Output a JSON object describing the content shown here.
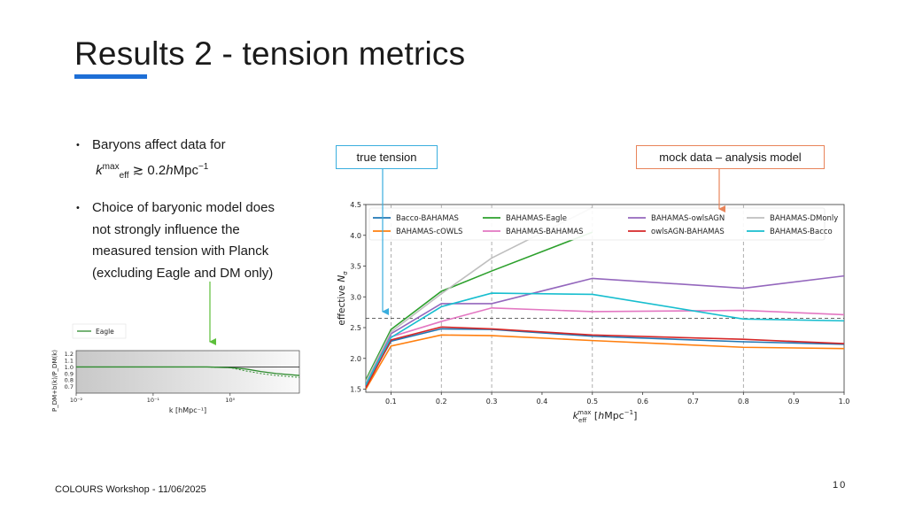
{
  "slide": {
    "title": "Results 2 - tension metrics",
    "footer": "COLOURS Workshop - 11/06/2025",
    "page_number": "10",
    "accent_color": "#1e6fd6"
  },
  "bullets": [
    {
      "text": "Baryons affect data for",
      "kline_k": "k",
      "kline_sup": "max",
      "kline_sub": "eff",
      "kline_rest": " ≳ 0.2",
      "kline_h": "h",
      "kline_unit": "Mpc",
      "kline_unit_sup": "−1"
    },
    {
      "text": "Choice of baryonic model does not strongly influence the measured tension with Planck (excluding Eagle and DM only)"
    }
  ],
  "callouts": {
    "true_tension": "true tension",
    "mock_data": "mock data – analysis model",
    "true_color": "#3aaede",
    "mock_color": "#e8845a",
    "arrow_green": "#5cbf3a"
  },
  "chart_data": [
    {
      "type": "line",
      "xlabel": "k_eff^max [hMpc^-1]",
      "ylabel": "effective N_σ",
      "xlim": [
        0.05,
        1.0
      ],
      "ylim": [
        1.45,
        4.5
      ],
      "x_ticks": [
        "0.1",
        "0.2",
        "0.3",
        "0.4",
        "0.5",
        "0.6",
        "0.7",
        "0.8",
        "0.9",
        "1.0"
      ],
      "y_ticks": [
        "1.5",
        "2.0",
        "2.5",
        "3.0",
        "3.5",
        "4.0",
        "4.5"
      ],
      "x_tick_values": [
        0.1,
        0.2,
        0.3,
        0.4,
        0.5,
        0.6,
        0.7,
        0.8,
        0.9,
        1.0
      ],
      "y_tick_values": [
        1.5,
        2.0,
        2.5,
        3.0,
        3.5,
        4.0,
        4.5
      ],
      "vlines": [
        0.1,
        0.2,
        0.3,
        0.5,
        0.8
      ],
      "hline": 2.65,
      "legend_position": "top",
      "series": [
        {
          "name": "Bacco-BAHAMAS",
          "color": "#1f77b4",
          "x": [
            0.05,
            0.1,
            0.2,
            0.3,
            0.5,
            0.8,
            1.0
          ],
          "y": [
            1.55,
            2.28,
            2.48,
            2.47,
            2.36,
            2.27,
            2.23
          ]
        },
        {
          "name": "BAHAMAS-cOWLS",
          "color": "#ff7f0e",
          "x": [
            0.05,
            0.1,
            0.2,
            0.3,
            0.5,
            0.8,
            1.0
          ],
          "y": [
            1.5,
            2.2,
            2.38,
            2.37,
            2.29,
            2.18,
            2.16
          ]
        },
        {
          "name": "BAHAMAS-Eagle",
          "color": "#2ca02c",
          "x": [
            0.05,
            0.1,
            0.2,
            0.3,
            0.5
          ],
          "y": [
            1.65,
            2.47,
            3.09,
            3.42,
            4.05
          ]
        },
        {
          "name": "BAHAMAS-BAHAMAS",
          "color": "#e377c2",
          "x": [
            0.05,
            0.1,
            0.2,
            0.3,
            0.5,
            0.8,
            1.0
          ],
          "y": [
            1.58,
            2.35,
            2.6,
            2.82,
            2.76,
            2.78,
            2.71
          ]
        },
        {
          "name": "BAHAMAS-owlsAGN",
          "color": "#9467bd",
          "x": [
            0.05,
            0.1,
            0.2,
            0.3,
            0.5,
            0.8,
            1.0
          ],
          "y": [
            1.6,
            2.4,
            2.89,
            2.89,
            3.3,
            3.14,
            3.34
          ]
        },
        {
          "name": "owlsAGN-BAHAMAS",
          "color": "#d62728",
          "x": [
            0.05,
            0.1,
            0.2,
            0.3,
            0.5,
            0.8,
            1.0
          ],
          "y": [
            1.52,
            2.3,
            2.51,
            2.48,
            2.38,
            2.31,
            2.24
          ]
        },
        {
          "name": "BAHAMAS-DMonly",
          "color": "#bfbfbf",
          "x": [
            0.05,
            0.1,
            0.2,
            0.3,
            0.5
          ],
          "y": [
            1.62,
            2.43,
            3.05,
            3.63,
            4.45
          ]
        },
        {
          "name": "BAHAMAS-Bacco",
          "color": "#17becf",
          "x": [
            0.05,
            0.1,
            0.2,
            0.3,
            0.5,
            0.8,
            1.0
          ],
          "y": [
            1.57,
            2.34,
            2.84,
            3.06,
            3.04,
            2.64,
            2.61
          ]
        }
      ]
    },
    {
      "type": "line",
      "xlabel": "k [hMpc^-1]",
      "ylabel": "P_DM+b(k)/P_DM(k)",
      "xscale": "log",
      "xlim_exp": [
        -2,
        0.9
      ],
      "ylim": [
        0.6,
        1.25
      ],
      "x_ticks": [
        "10⁻²",
        "10⁻¹",
        "10⁰"
      ],
      "x_tick_exps": [
        -2,
        -1,
        0
      ],
      "y_ticks": [
        "1.2",
        "1.1",
        "1.0",
        "0.9",
        "0.8",
        "0.7"
      ],
      "y_tick_values": [
        1.2,
        1.1,
        1.0,
        0.9,
        0.8,
        0.7
      ],
      "legend_position": "top-left",
      "series": [
        {
          "name": "Eagle",
          "color": "#2e8b2e",
          "log10_x": [
            -2,
            -1.0,
            -0.3,
            0.0,
            0.2,
            0.4,
            0.6,
            0.9
          ],
          "y": [
            1.0,
            1.0,
            1.0,
            0.99,
            0.97,
            0.93,
            0.9,
            0.87
          ]
        }
      ]
    }
  ]
}
